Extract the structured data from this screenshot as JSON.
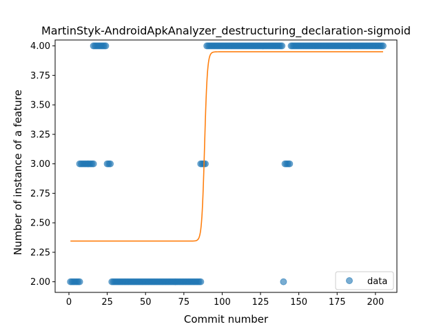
{
  "chart_data": {
    "type": "scatter",
    "title": "MartinStyk-AndroidApkAnalyzer_destructuring_declaration-sigmoid",
    "xlabel": "Commit number",
    "ylabel": "Number of instance of a feature",
    "xlim": [
      -9,
      214
    ],
    "ylim": [
      1.91,
      4.05
    ],
    "xticks": [
      0,
      25,
      50,
      75,
      100,
      125,
      150,
      175,
      200
    ],
    "yticks": [
      2.0,
      2.25,
      2.5,
      2.75,
      3.0,
      3.25,
      3.5,
      3.75,
      4.0
    ],
    "ytick_labels": [
      "2.00",
      "2.25",
      "2.50",
      "2.75",
      "3.00",
      "3.25",
      "3.50",
      "3.75",
      "4.00"
    ],
    "legend": {
      "position": "lower right",
      "entries": [
        "data"
      ]
    },
    "colors": {
      "data": "#1f77b4",
      "fit": "#ff7f0e"
    },
    "series": [
      {
        "name": "data",
        "kind": "scatter",
        "segments": [
          {
            "x_start": 1,
            "x_end": 7,
            "y": 2.0
          },
          {
            "x_start": 7,
            "x_end": 16,
            "y": 3.0
          },
          {
            "x_start": 16,
            "x_end": 24,
            "y": 4.0
          },
          {
            "x_start": 25,
            "x_end": 27,
            "y": 3.0
          },
          {
            "x_start": 28,
            "x_end": 86,
            "y": 2.0
          },
          {
            "x_start": 86,
            "x_end": 89,
            "y": 3.0
          },
          {
            "x_start": 90,
            "x_end": 139,
            "y": 4.0
          },
          {
            "x_start": 140,
            "x_end": 140,
            "y": 2.0
          },
          {
            "x_start": 141,
            "x_end": 144,
            "y": 3.0
          },
          {
            "x_start": 145,
            "x_end": 205,
            "y": 4.0
          }
        ]
      },
      {
        "kind": "line",
        "model": "sigmoid",
        "params": {
          "low": 2.345,
          "high": 3.95,
          "x0": 88.5,
          "k": 1.1
        },
        "x_range": [
          1,
          205
        ]
      }
    ]
  }
}
